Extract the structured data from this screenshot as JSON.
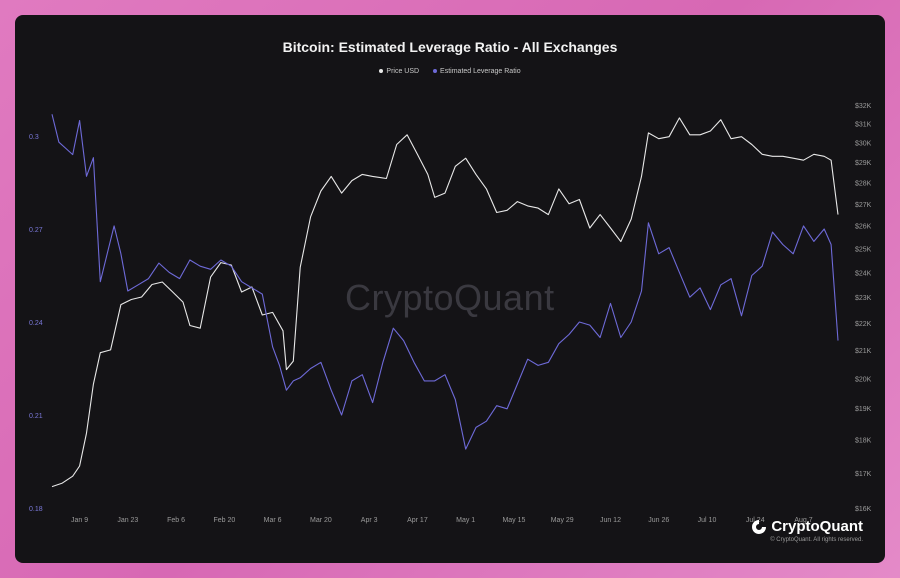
{
  "title": "Bitcoin: Estimated Leverage Ratio - All Exchanges",
  "legend": [
    {
      "label": "Price USD",
      "color": "#e8e8e8"
    },
    {
      "label": "Estimated Leverage Ratio",
      "color": "#6e6ad8"
    }
  ],
  "watermark": "CryptoQuant",
  "brand": {
    "name": "CryptoQuant",
    "copyright": "© CryptoQuant. All rights reserved."
  },
  "chart_data": {
    "type": "line",
    "title": "Bitcoin: Estimated Leverage Ratio - All Exchanges",
    "x_range": [
      "2023-01-01",
      "2023-08-17"
    ],
    "x_ticks": [
      "Jan 9",
      "Jan 23",
      "Feb 6",
      "Feb 20",
      "Mar 6",
      "Mar 20",
      "Apr 3",
      "Apr 17",
      "May 1",
      "May 15",
      "May 29",
      "Jun 12",
      "Jun 26",
      "Jul 10",
      "Jul 24",
      "Aug 7"
    ],
    "y_left": {
      "ticks": [
        "0.18",
        "0.21",
        "0.24",
        "0.27",
        "0.3"
      ],
      "min": 0.18,
      "max": 0.31
    },
    "y_right": {
      "ticks": [
        "$16K",
        "$17K",
        "$18K",
        "$19K",
        "$20K",
        "$21K",
        "$22K",
        "$23K",
        "$24K",
        "$25K",
        "$26K",
        "$27K",
        "$28K",
        "$29K",
        "$30K",
        "$31K",
        "$32K"
      ],
      "scale": "log",
      "min": 16000,
      "max": 32000
    },
    "grid": false,
    "legend_position": "top-center",
    "series": [
      {
        "name": "Price USD",
        "color": "#e8e8e8",
        "axis": "right",
        "x": [
          "2023-01-01",
          "2023-01-04",
          "2023-01-07",
          "2023-01-09",
          "2023-01-11",
          "2023-01-13",
          "2023-01-15",
          "2023-01-18",
          "2023-01-21",
          "2023-01-24",
          "2023-01-27",
          "2023-01-30",
          "2023-02-02",
          "2023-02-05",
          "2023-02-08",
          "2023-02-10",
          "2023-02-13",
          "2023-02-16",
          "2023-02-19",
          "2023-02-22",
          "2023-02-25",
          "2023-02-28",
          "2023-03-03",
          "2023-03-06",
          "2023-03-09",
          "2023-03-10",
          "2023-03-12",
          "2023-03-14",
          "2023-03-17",
          "2023-03-20",
          "2023-03-23",
          "2023-03-26",
          "2023-03-29",
          "2023-04-01",
          "2023-04-04",
          "2023-04-08",
          "2023-04-11",
          "2023-04-14",
          "2023-04-17",
          "2023-04-20",
          "2023-04-22",
          "2023-04-25",
          "2023-04-28",
          "2023-05-01",
          "2023-05-04",
          "2023-05-07",
          "2023-05-10",
          "2023-05-13",
          "2023-05-16",
          "2023-05-19",
          "2023-05-22",
          "2023-05-25",
          "2023-05-28",
          "2023-05-31",
          "2023-06-03",
          "2023-06-06",
          "2023-06-09",
          "2023-06-12",
          "2023-06-15",
          "2023-06-18",
          "2023-06-21",
          "2023-06-23",
          "2023-06-26",
          "2023-06-29",
          "2023-07-02",
          "2023-07-05",
          "2023-07-08",
          "2023-07-11",
          "2023-07-14",
          "2023-07-17",
          "2023-07-20",
          "2023-07-23",
          "2023-07-26",
          "2023-07-29",
          "2023-08-01",
          "2023-08-04",
          "2023-08-07",
          "2023-08-10",
          "2023-08-13",
          "2023-08-15",
          "2023-08-17"
        ],
        "values": [
          16600,
          16700,
          16900,
          17200,
          18200,
          19800,
          20900,
          21000,
          22700,
          22900,
          23000,
          23500,
          23600,
          23200,
          22800,
          21900,
          21800,
          23800,
          24400,
          24300,
          23200,
          23400,
          22300,
          22400,
          21700,
          20300,
          20600,
          24200,
          26400,
          27600,
          28300,
          27500,
          28100,
          28400,
          28300,
          28200,
          29900,
          30400,
          29400,
          28400,
          27300,
          27500,
          28800,
          29200,
          28400,
          27700,
          26600,
          26700,
          27100,
          26900,
          26800,
          26500,
          27700,
          27000,
          27200,
          25900,
          26500,
          25900,
          25300,
          26300,
          28300,
          30500,
          30200,
          30300,
          31300,
          30400,
          30400,
          30600,
          31200,
          30200,
          30300,
          29900,
          29400,
          29300,
          29300,
          29200,
          29100,
          29400,
          29300,
          29100,
          26500
        ]
      },
      {
        "name": "Estimated Leverage Ratio",
        "color": "#6e6ad8",
        "axis": "left",
        "x": [
          "2023-01-01",
          "2023-01-03",
          "2023-01-05",
          "2023-01-07",
          "2023-01-09",
          "2023-01-11",
          "2023-01-13",
          "2023-01-15",
          "2023-01-17",
          "2023-01-19",
          "2023-01-21",
          "2023-01-23",
          "2023-01-26",
          "2023-01-29",
          "2023-02-01",
          "2023-02-04",
          "2023-02-07",
          "2023-02-10",
          "2023-02-13",
          "2023-02-16",
          "2023-02-19",
          "2023-02-22",
          "2023-02-25",
          "2023-02-28",
          "2023-03-03",
          "2023-03-06",
          "2023-03-08",
          "2023-03-10",
          "2023-03-12",
          "2023-03-14",
          "2023-03-17",
          "2023-03-20",
          "2023-03-23",
          "2023-03-26",
          "2023-03-29",
          "2023-04-01",
          "2023-04-04",
          "2023-04-07",
          "2023-04-10",
          "2023-04-13",
          "2023-04-16",
          "2023-04-19",
          "2023-04-22",
          "2023-04-25",
          "2023-04-28",
          "2023-05-01",
          "2023-05-04",
          "2023-05-07",
          "2023-05-10",
          "2023-05-13",
          "2023-05-16",
          "2023-05-19",
          "2023-05-22",
          "2023-05-25",
          "2023-05-28",
          "2023-05-31",
          "2023-06-03",
          "2023-06-06",
          "2023-06-09",
          "2023-06-12",
          "2023-06-15",
          "2023-06-18",
          "2023-06-21",
          "2023-06-23",
          "2023-06-26",
          "2023-06-29",
          "2023-07-02",
          "2023-07-05",
          "2023-07-08",
          "2023-07-11",
          "2023-07-14",
          "2023-07-17",
          "2023-07-20",
          "2023-07-23",
          "2023-07-26",
          "2023-07-29",
          "2023-08-01",
          "2023-08-04",
          "2023-08-07",
          "2023-08-10",
          "2023-08-13",
          "2023-08-15",
          "2023-08-17"
        ],
        "values": [
          0.307,
          0.298,
          0.296,
          0.294,
          0.305,
          0.287,
          0.293,
          0.253,
          0.262,
          0.271,
          0.262,
          0.25,
          0.252,
          0.254,
          0.259,
          0.256,
          0.254,
          0.26,
          0.258,
          0.257,
          0.26,
          0.258,
          0.253,
          0.251,
          0.249,
          0.232,
          0.226,
          0.218,
          0.221,
          0.222,
          0.225,
          0.227,
          0.218,
          0.21,
          0.221,
          0.223,
          0.214,
          0.227,
          0.238,
          0.234,
          0.227,
          0.221,
          0.221,
          0.223,
          0.215,
          0.199,
          0.206,
          0.208,
          0.213,
          0.212,
          0.22,
          0.228,
          0.226,
          0.227,
          0.233,
          0.236,
          0.24,
          0.239,
          0.235,
          0.246,
          0.235,
          0.24,
          0.25,
          0.272,
          0.262,
          0.264,
          0.256,
          0.248,
          0.251,
          0.244,
          0.252,
          0.254,
          0.242,
          0.255,
          0.258,
          0.269,
          0.265,
          0.262,
          0.271,
          0.266,
          0.27,
          0.265,
          0.234
        ]
      }
    ]
  }
}
